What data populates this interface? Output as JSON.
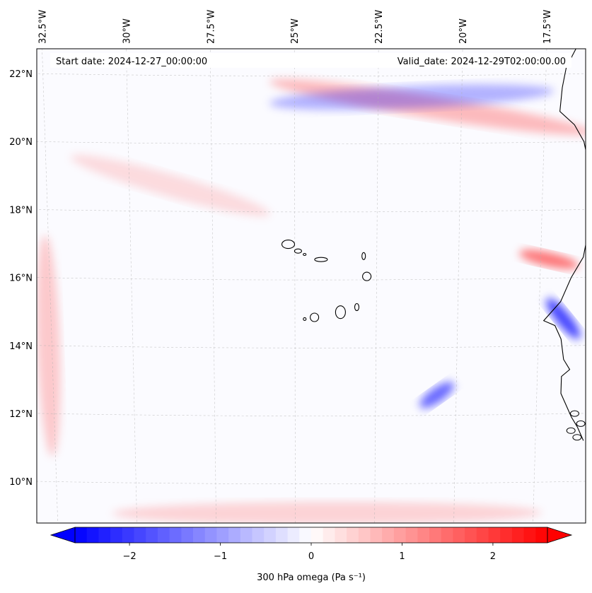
{
  "header": {
    "start_label": "Start date: 2024-12-27_00:00:00",
    "valid_label": "Valid_date: 2024-12-29T02:00:00.00"
  },
  "map": {
    "extent": {
      "lon_min": -32.9,
      "lon_max": -16.1,
      "lat_min": 8.85,
      "lat_max": 22.8
    },
    "lon_ticks": [
      {
        "value": -32.5,
        "label": "32.5°W"
      },
      {
        "value": -30.0,
        "label": "30°W"
      },
      {
        "value": -27.5,
        "label": "27.5°W"
      },
      {
        "value": -25.0,
        "label": "25°W"
      },
      {
        "value": -22.5,
        "label": "22.5°W"
      },
      {
        "value": -20.0,
        "label": "20°W"
      },
      {
        "value": -17.5,
        "label": "17.5°W"
      }
    ],
    "lat_ticks": [
      {
        "value": 22,
        "label": "22°N"
      },
      {
        "value": 20,
        "label": "20°N"
      },
      {
        "value": 18,
        "label": "18°N"
      },
      {
        "value": 16,
        "label": "16°N"
      },
      {
        "value": 14,
        "label": "14°N"
      },
      {
        "value": 12,
        "label": "12°N"
      },
      {
        "value": 10,
        "label": "10°N"
      }
    ],
    "islands": [
      {
        "name": "Santo Antao",
        "lon": -25.2,
        "lat": 17.05
      },
      {
        "name": "Sao Vicente",
        "lon": -24.9,
        "lat": 16.85
      },
      {
        "name": "Santa Luzia",
        "lon": -24.7,
        "lat": 16.75
      },
      {
        "name": "Sao Nicolau",
        "lon": -24.2,
        "lat": 16.6
      },
      {
        "name": "Sal",
        "lon": -22.9,
        "lat": 16.7
      },
      {
        "name": "Boa Vista",
        "lon": -22.8,
        "lat": 16.1
      },
      {
        "name": "Maio",
        "lon": -23.1,
        "lat": 15.2
      },
      {
        "name": "Santiago",
        "lon": -23.6,
        "lat": 15.05
      },
      {
        "name": "Fogo",
        "lon": -24.4,
        "lat": 14.9
      },
      {
        "name": "Brava",
        "lon": -24.7,
        "lat": 14.85
      }
    ]
  },
  "colorbar": {
    "label": "300 hPa omega (Pa s⁻¹)",
    "min": -2.6,
    "max": 2.6,
    "ticks": [
      {
        "value": -2,
        "label": "−2"
      },
      {
        "value": -1,
        "label": "−1"
      },
      {
        "value": 0,
        "label": "0"
      },
      {
        "value": 1,
        "label": "1"
      },
      {
        "value": 2,
        "label": "2"
      }
    ],
    "neg_color": "#0000ff",
    "pos_color": "#ff0000",
    "mid_color": "#ffffff",
    "extend": "both"
  },
  "fields": [
    {
      "name": "northern-ascent-band",
      "lon_from": -25.5,
      "lon_to": -16.3,
      "lat_from": 21.8,
      "lat_to": 20.3,
      "value": 0.8
    },
    {
      "name": "northern-subsidence-band",
      "lon_from": -25.5,
      "lon_to": -17.5,
      "lat_from": 21.2,
      "lat_to": 21.5,
      "value": -0.9
    },
    {
      "name": "western-edge-band",
      "lon_from": -32.6,
      "lon_to": -32.6,
      "lat_from": 17.0,
      "lat_to": 11.0,
      "value": 0.6
    },
    {
      "name": "southern-edge-band",
      "lon_from": -30.5,
      "lon_to": -17.5,
      "lat_from": 9.1,
      "lat_to": 9.1,
      "value": 0.5
    },
    {
      "name": "coastal-ascent",
      "lon_from": -17.1,
      "lon_to": -16.4,
      "lat_from": 15.2,
      "lat_to": 14.4,
      "value": -2.2
    },
    {
      "name": "coastal-subsidence",
      "lon_from": -17.9,
      "lon_to": -16.6,
      "lat_from": 16.7,
      "lat_to": 16.4,
      "value": 1.6
    },
    {
      "name": "offshore-ascent-streak",
      "lon_from": -20.9,
      "lon_to": -20.3,
      "lat_from": 12.4,
      "lat_to": 12.8,
      "value": -1.8
    },
    {
      "name": "northwest-plume",
      "lon_from": -31.5,
      "lon_to": -26.0,
      "lat_from": 19.5,
      "lat_to": 18.0,
      "value": 0.4
    }
  ]
}
